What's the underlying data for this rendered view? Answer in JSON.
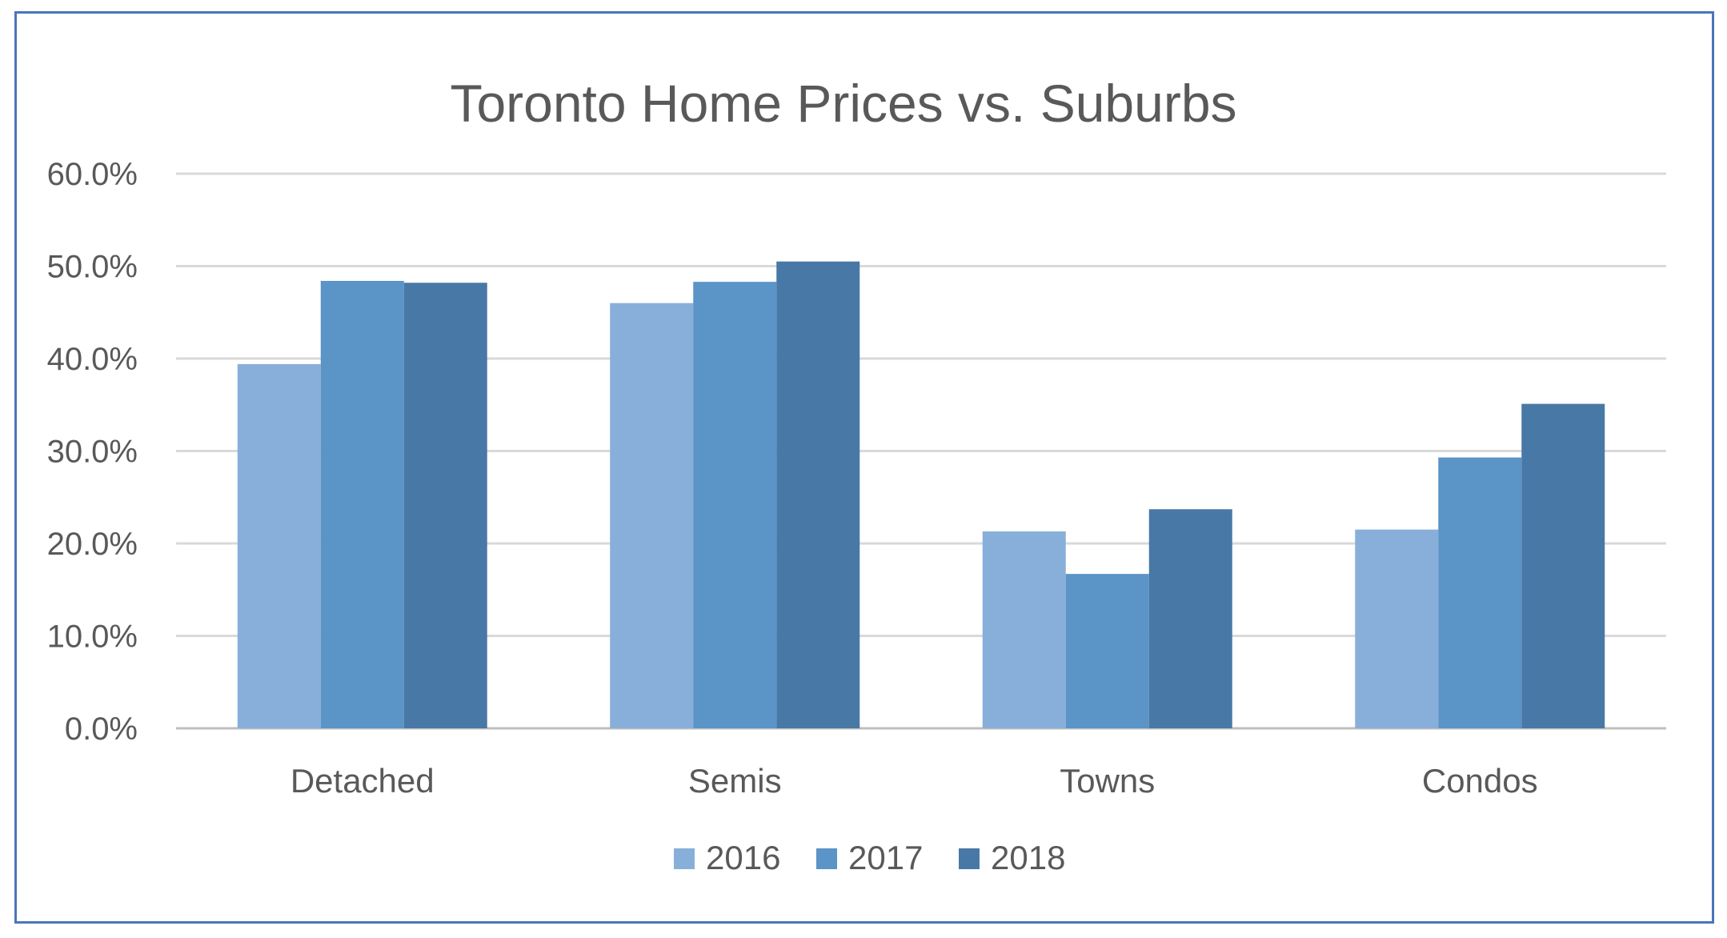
{
  "chart_data": {
    "type": "bar",
    "title": "Toronto Home Prices vs. Suburbs",
    "xlabel": "",
    "ylabel": "",
    "categories": [
      "Detached",
      "Semis",
      "Towns",
      "Condos"
    ],
    "series": [
      {
        "name": "2016",
        "values": [
          39.4,
          46.0,
          21.3,
          21.5
        ],
        "color": "#88afd9"
      },
      {
        "name": "2017",
        "values": [
          48.4,
          48.3,
          16.7,
          29.3
        ],
        "color": "#5b94c6"
      },
      {
        "name": "2018",
        "values": [
          48.2,
          50.5,
          23.7,
          35.1
        ],
        "color": "#4879a6"
      }
    ],
    "ylim": [
      0,
      60
    ],
    "y_ticks": [
      0,
      10,
      20,
      30,
      40,
      50,
      60
    ],
    "y_tick_labels": [
      "0.0%",
      "10.0%",
      "20.0%",
      "30.0%",
      "40.0%",
      "50.0%",
      "60.0%"
    ],
    "grid": true,
    "legend_position": "bottom"
  },
  "frame_color": "#4a76b8",
  "grid_color": "#d9d9d9",
  "text_color": "#595959"
}
